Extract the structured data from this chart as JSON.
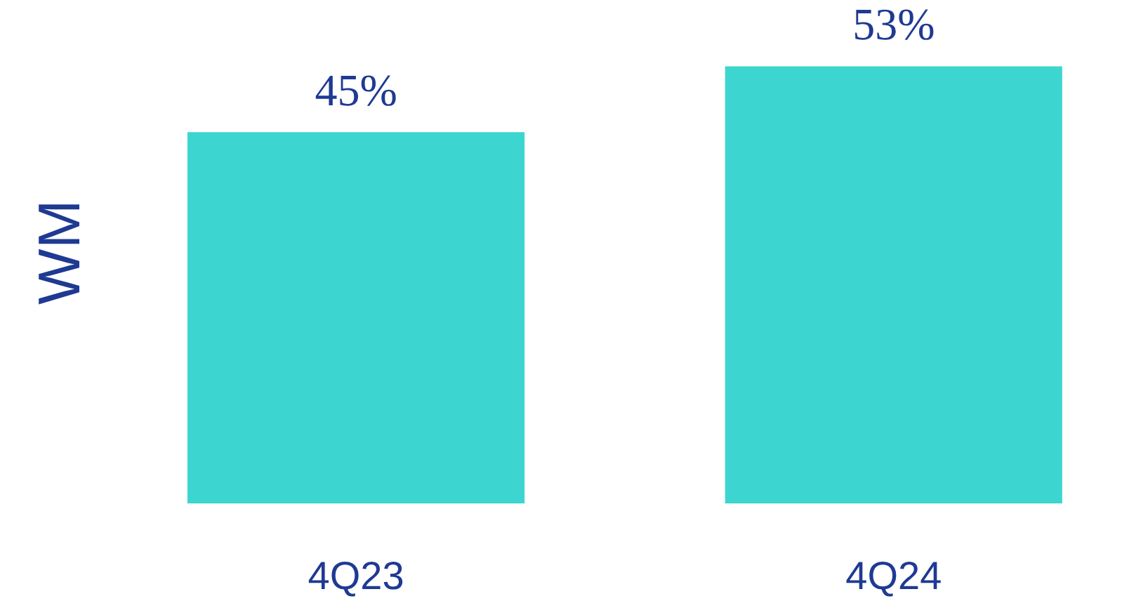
{
  "chart_data": {
    "type": "bar",
    "ylabel": "WM",
    "categories": [
      "4Q23",
      "4Q24"
    ],
    "values": [
      45,
      53
    ],
    "value_labels": [
      "45%",
      "53%"
    ],
    "color": "#3dd5d0"
  }
}
